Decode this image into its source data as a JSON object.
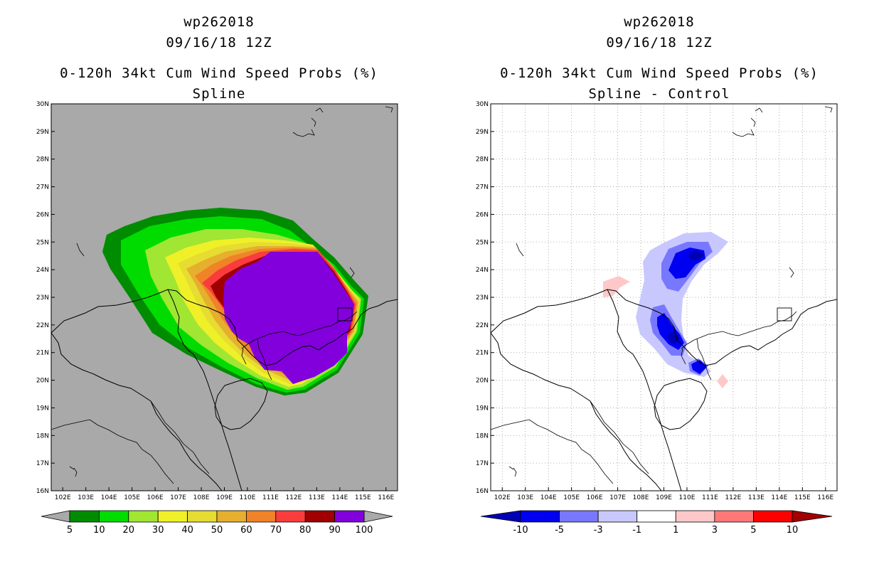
{
  "left_panel": {
    "title_line1": "wp262018",
    "title_line2": "09/16/18 12Z",
    "title_line3": "0-120h 34kt Cum Wind Speed Probs (%)",
    "title_line4": "Spline",
    "background_color": "#a9a9a9",
    "colorbar_labels": [
      "5",
      "10",
      "20",
      "30",
      "40",
      "50",
      "60",
      "70",
      "80",
      "90",
      "100"
    ],
    "colorbar_colors": [
      "#008c00",
      "#00dc00",
      "#a0e632",
      "#f0f028",
      "#e6dc32",
      "#e6af2d",
      "#f08228",
      "#fa3c3c",
      "#a00000",
      "#8200dc"
    ]
  },
  "right_panel": {
    "title_line1": "wp262018",
    "title_line2": "09/16/18 12Z",
    "title_line3": "0-120h 34kt Cum Wind Speed Probs (%)",
    "title_line4": "Spline - Control",
    "background_color": "#ffffff",
    "colorbar_labels": [
      "-10",
      "-5",
      "-3",
      "-1",
      "1",
      "3",
      "5",
      "10"
    ],
    "colorbar_colors": [
      "#0000b4",
      "#0000f0",
      "#7878ff",
      "#c8c8ff",
      "#ffffff",
      "#ffc8c8",
      "#ff7878",
      "#ff0000",
      "#a00000"
    ]
  },
  "axes": {
    "lat_labels": [
      "30N",
      "29N",
      "28N",
      "27N",
      "26N",
      "25N",
      "24N",
      "23N",
      "22N",
      "21N",
      "20N",
      "19N",
      "18N",
      "17N",
      "16N"
    ],
    "lon_labels": [
      "102E",
      "103E",
      "104E",
      "105E",
      "106E",
      "107E",
      "108E",
      "109E",
      "110E",
      "111E",
      "112E",
      "113E",
      "114E",
      "115E",
      "116E"
    ]
  },
  "chart_data": [
    {
      "type": "heatmap",
      "title": "0-120h 34kt Cum Wind Speed Probs (%) - Spline",
      "variable": "cumulative 34kt wind speed probability",
      "units": "%",
      "lon_range": [
        101.5,
        116.5
      ],
      "lat_range": [
        16,
        30
      ],
      "contour_levels": [
        5,
        10,
        20,
        30,
        40,
        50,
        60,
        70,
        80,
        90,
        100
      ],
      "description_regions": [
        {
          "level": "90-100",
          "approx_extent": "109E-115E, 20N-24.6N (purple core)"
        },
        {
          "level": "5-10",
          "approx_extent": "103.5E-115.5E, 19.5N-25.5N (outer green)"
        }
      ]
    },
    {
      "type": "heatmap",
      "title": "0-120h 34kt Cum Wind Speed Probs (%) - Spline - Control",
      "variable": "probability difference",
      "units": "%",
      "lon_range": [
        101.5,
        116.5
      ],
      "lat_range": [
        16,
        30
      ],
      "contour_levels": [
        -10,
        -5,
        -3,
        -1,
        1,
        3,
        5,
        10
      ],
      "description_regions": [
        {
          "level": "<-10",
          "approx_center": "110.5E, 24.5N"
        },
        {
          "level": "<-10",
          "approx_center": "109.5E, 21.5N"
        },
        {
          "level": "-10 to -5",
          "approx_center": "110.5E, 20.5N"
        },
        {
          "level": "1-3",
          "approx_center": "107E, 23.3N"
        },
        {
          "level": "1-3",
          "approx_center": "111.6E, 20N"
        }
      ]
    }
  ]
}
